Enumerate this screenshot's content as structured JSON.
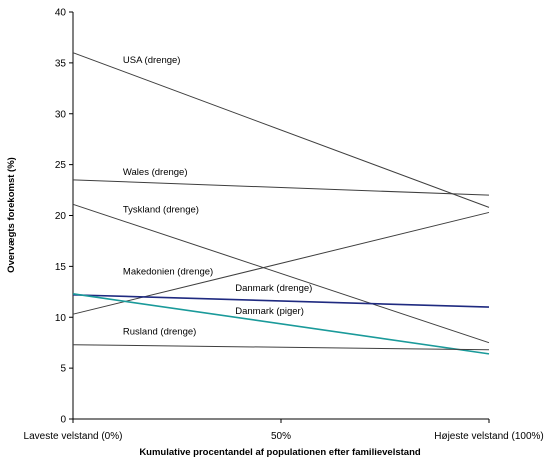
{
  "chart_data": {
    "type": "line",
    "title": "",
    "xlabel": "Kumulative procentandel af populationen efter familievelstand",
    "ylabel": "Overvægts forekomst (%)",
    "ylim": [
      0,
      40
    ],
    "yticks": [
      0,
      5,
      10,
      15,
      20,
      25,
      30,
      35,
      40
    ],
    "x": [
      0,
      100
    ],
    "xticks": [
      {
        "value": 0,
        "label": "Laveste velstand (0%)"
      },
      {
        "value": 50,
        "label": "50%"
      },
      {
        "value": 100,
        "label": "Højeste velstand (100%)"
      }
    ],
    "grid": false,
    "legend": "none",
    "series": [
      {
        "name": "USA (drenge)",
        "values": [
          36.0,
          20.8
        ],
        "color": "#3f3f3f",
        "width": 1,
        "label_at": [
          12,
          35.0
        ]
      },
      {
        "name": "Wales (drenge)",
        "values": [
          23.5,
          22.0
        ],
        "color": "#3f3f3f",
        "width": 1,
        "label_at": [
          12,
          24.0
        ]
      },
      {
        "name": "Tyskland (drenge)",
        "values": [
          21.1,
          7.5
        ],
        "color": "#3f3f3f",
        "width": 1,
        "label_at": [
          12,
          20.3
        ]
      },
      {
        "name": "Makedonien (drenge)",
        "values": [
          10.3,
          20.3
        ],
        "color": "#3f3f3f",
        "width": 1,
        "label_at": [
          12,
          14.2
        ]
      },
      {
        "name": "Danmark (drenge)",
        "values": [
          12.2,
          11.0
        ],
        "color": "#1f2a80",
        "width": 1.6,
        "label_at": [
          39,
          12.6
        ]
      },
      {
        "name": "Danmark (piger)",
        "values": [
          12.3,
          6.4
        ],
        "color": "#1a9a9a",
        "width": 1.6,
        "label_at": [
          39,
          10.3
        ]
      },
      {
        "name": "Rusland (drenge)",
        "values": [
          7.3,
          6.8
        ],
        "color": "#3f3f3f",
        "width": 1,
        "label_at": [
          12,
          8.3
        ]
      }
    ]
  }
}
